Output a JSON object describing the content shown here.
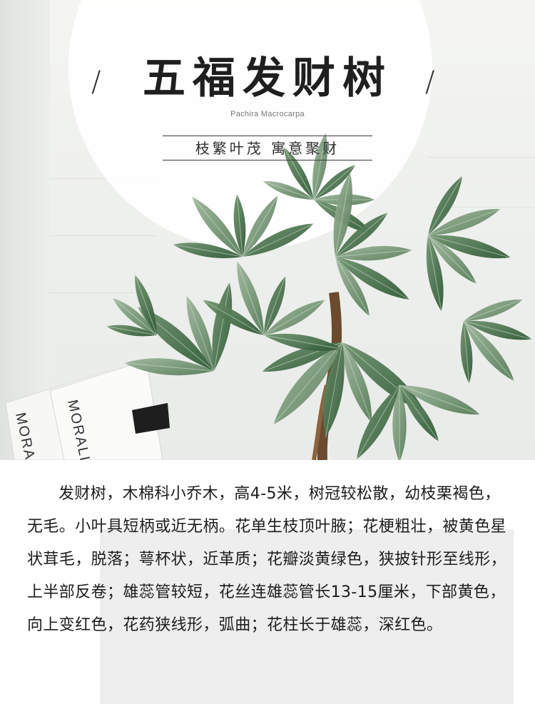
{
  "title": "五福发财树",
  "subtitle_en": "Pachira Macrocarpa",
  "slogan": "枝繁叶茂  寓意聚财",
  "decoration": {
    "slash_left": "/",
    "slash_right": "/"
  },
  "book_text": {
    "book1": "MORAL",
    "book2": "MORALIT"
  },
  "description": "发财树，木棉科小乔木，高4-5米，树冠较松散，幼枝栗褐色，无毛。小叶具短柄或近无柄。花单生枝顶叶腋；花梗粗壮，被黄色星状茸毛，脱落；萼杯状，近革质；花瓣淡黄绿色，狭披针形至线形，上半部反卷；雄蕊管较短，花丝连雄蕊管长13-15厘米，下部黄色，向上变红色，花药狭线形，弧曲；花柱长于雄蕊，深红色。",
  "colors": {
    "leaf_dark": "#2f5a36",
    "leaf_mid": "#4f7a52",
    "leaf_light": "#7d9c7c",
    "trunk": "#6b4a2e",
    "text": "#1c1c1c"
  }
}
